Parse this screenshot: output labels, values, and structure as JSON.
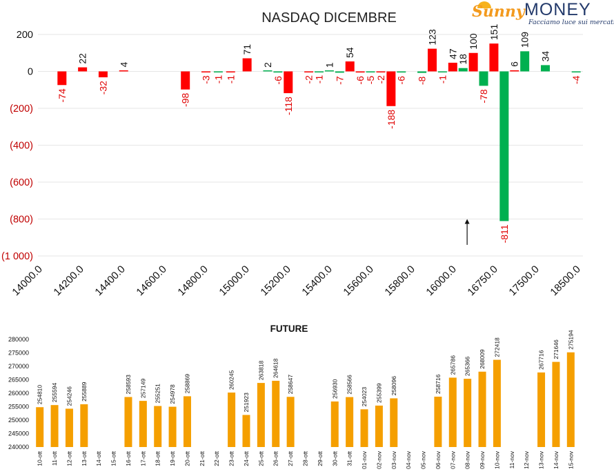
{
  "logo": {
    "script_text": "Sunny",
    "word_text": "MONEY",
    "tagline": "Facciamo luce sui mercati"
  },
  "colors": {
    "positive": "#ff0000",
    "negative": "#00b050",
    "future_bar": "#f59f00",
    "negative_axis_label": "#c00000"
  },
  "chart_data": [
    {
      "type": "bar",
      "title": "NASDAQ DICEMBRE",
      "ylim": [
        -1000,
        250
      ],
      "yticks": [
        200,
        0,
        -200,
        -400,
        -600,
        -800,
        -1000
      ],
      "ytick_labels": [
        "200",
        "0",
        "(200)",
        "(400)",
        "(600)",
        "(800)",
        "(1 000)"
      ],
      "xtick_labels": [
        "14000.0",
        "14200.0",
        "14400.0",
        "14600.0",
        "14800.0",
        "15000.0",
        "15200.0",
        "15400.0",
        "15600.0",
        "15800.0",
        "16000.0",
        "16750.0",
        "17500.0",
        "18500.0"
      ],
      "grid": true,
      "bars": [
        {
          "slot": 0.5,
          "value": -74,
          "label": "-74",
          "color": "red"
        },
        {
          "slot": 1.0,
          "value": 22,
          "label": "22",
          "color": "red"
        },
        {
          "slot": 1.5,
          "value": -32,
          "label": "-32",
          "color": "red"
        },
        {
          "slot": 2.0,
          "value": 4,
          "label": "4",
          "color": "red"
        },
        {
          "slot": 3.5,
          "value": -98,
          "label": "-98",
          "color": "red"
        },
        {
          "slot": 4.0,
          "value": -3,
          "label": "-3",
          "color": "red"
        },
        {
          "slot": 4.3,
          "value": -1,
          "label": "-1",
          "color": "green"
        },
        {
          "slot": 4.6,
          "value": -1,
          "label": "-1",
          "color": "red"
        },
        {
          "slot": 5.0,
          "value": 71,
          "label": "71",
          "color": "red"
        },
        {
          "slot": 5.5,
          "value": 2,
          "label": "2",
          "color": "green"
        },
        {
          "slot": 5.75,
          "value": -6,
          "label": "-6",
          "color": "green"
        },
        {
          "slot": 6.0,
          "value": -118,
          "label": "-118",
          "color": "red"
        },
        {
          "slot": 6.5,
          "value": -2,
          "label": "-2",
          "color": "red"
        },
        {
          "slot": 6.75,
          "value": -1,
          "label": "-1",
          "color": "green"
        },
        {
          "slot": 7.0,
          "value": 1,
          "label": "1",
          "color": "green"
        },
        {
          "slot": 7.25,
          "value": -7,
          "label": "-7",
          "color": "green"
        },
        {
          "slot": 7.5,
          "value": 54,
          "label": "54",
          "color": "red"
        },
        {
          "slot": 7.75,
          "value": -6,
          "label": "-6",
          "color": "red"
        },
        {
          "slot": 8.0,
          "value": -5,
          "label": "-5",
          "color": "green"
        },
        {
          "slot": 8.25,
          "value": -2,
          "label": "-2",
          "color": "red"
        },
        {
          "slot": 8.5,
          "value": -188,
          "label": "-188",
          "color": "red"
        },
        {
          "slot": 8.75,
          "value": -6,
          "label": "-6",
          "color": "green"
        },
        {
          "slot": 9.25,
          "value": -8,
          "label": "-8",
          "color": "green"
        },
        {
          "slot": 9.5,
          "value": 123,
          "label": "123",
          "color": "red"
        },
        {
          "slot": 9.75,
          "value": -1,
          "label": "-1",
          "color": "green"
        },
        {
          "slot": 10.0,
          "value": 47,
          "label": "47",
          "color": "red"
        },
        {
          "slot": 10.25,
          "value": 18,
          "label": "18",
          "color": "green"
        },
        {
          "slot": 10.5,
          "value": 100,
          "label": "100",
          "color": "red"
        },
        {
          "slot": 10.75,
          "value": -78,
          "label": "-78",
          "color": "green"
        },
        {
          "slot": 11.0,
          "value": 151,
          "label": "151",
          "color": "red"
        },
        {
          "slot": 11.25,
          "value": -811,
          "label": "-811",
          "color": "green"
        },
        {
          "slot": 11.5,
          "value": 6,
          "label": "6",
          "color": "red"
        },
        {
          "slot": 11.75,
          "value": 109,
          "label": "109",
          "color": "green"
        },
        {
          "slot": 12.25,
          "value": 34,
          "label": "34",
          "color": "green"
        },
        {
          "slot": 13.0,
          "value": -4,
          "label": "-4",
          "color": "green"
        }
      ],
      "arrow_slot": 10.5,
      "arrow_from_value": -940,
      "arrow_to_value": -800
    },
    {
      "type": "bar",
      "title": "FUTURE",
      "ylim": [
        240000,
        280000
      ],
      "yticks": [
        240000,
        245000,
        250000,
        255000,
        260000,
        265000,
        270000,
        275000,
        280000
      ],
      "ytick_labels": [
        "240000",
        "245000",
        "250000",
        "255000",
        "260000",
        "265000",
        "270000",
        "275000",
        "280000"
      ],
      "categories": [
        "10-ott",
        "11-ott",
        "12-ott",
        "13-ott",
        "14-ott",
        "15-ott",
        "16-ott",
        "17-ott",
        "18-ott",
        "19-ott",
        "20-ott",
        "21-ott",
        "22-ott",
        "23-ott",
        "24-ott",
        "25-ott",
        "26-ott",
        "27-ott",
        "28-ott",
        "29-ott",
        "30-ott",
        "31-ott",
        "01-nov",
        "02-nov",
        "03-nov",
        "04-nov",
        "05-nov",
        "06-nov",
        "07-nov",
        "08-nov",
        "09-nov",
        "10-nov",
        "11-nov",
        "12-nov",
        "13-nov",
        "14-nov",
        "15-nov"
      ],
      "values": [
        254810,
        255594,
        254246,
        255889,
        null,
        null,
        258593,
        257149,
        255251,
        254978,
        258869,
        null,
        null,
        260245,
        251923,
        263818,
        264618,
        258647,
        null,
        null,
        256930,
        258566,
        254023,
        255399,
        258096,
        null,
        null,
        258716,
        265786,
        265366,
        268009,
        272418,
        null,
        null,
        267716,
        271646,
        275194
      ],
      "value_labels": [
        "254810",
        "255594",
        "254246",
        "255889",
        "",
        "",
        "258593",
        "257149",
        "255251",
        "254978",
        "258869",
        "",
        "",
        "260245",
        "251923",
        "263818",
        "264618",
        "258647",
        "",
        "",
        "256930",
        "258566",
        "254023",
        "255399",
        "258096",
        "",
        "",
        "258716",
        "265786",
        "265366",
        "268009",
        "272418",
        "",
        "",
        "267716",
        "271646",
        "275194"
      ]
    }
  ]
}
